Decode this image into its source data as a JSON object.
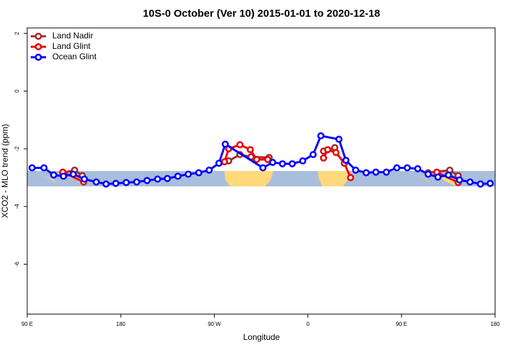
{
  "chart_data": {
    "type": "line",
    "title": "10S-0 October (Ver 10)   2015-01-01 to 2020-12-18",
    "x_label": "Longitude",
    "y_label": "XCO2 - MLO trend (ppm)",
    "xlim": [
      90,
      540
    ],
    "ylim": [
      -7.73,
      2.19
    ],
    "xticks": [
      {
        "value": 90,
        "label": "90 E"
      },
      180,
      {
        "value": 270,
        "label": "90 W"
      },
      {
        "value": 360,
        "label": "0"
      },
      {
        "value": 450,
        "label": "90 E"
      },
      {
        "value": 540,
        "label": "180"
      }
    ],
    "yticks": [
      -6,
      -4,
      -2,
      0,
      2
    ],
    "legend": "top-left",
    "series": [
      {
        "name": "Land Nadir",
        "color": "#a52a2a",
        "x": [
          124.2,
          135.6,
          143,
          null,
          283.8,
          294.6,
          305.3,
          322.7,
          null,
          375,
          385.8,
          null,
          475.6,
          496.4,
          504.5
        ],
        "values": [
          -2.83,
          -2.74,
          -2.93,
          null,
          -2.42,
          -2.2,
          -2.28,
          -2.3,
          null,
          -2.08,
          -1.96,
          null,
          -2.83,
          -2.74,
          -2.93
        ]
      },
      {
        "name": "Land Glint",
        "color": "#ee0000",
        "x": [
          124.2,
          144.3,
          null,
          279.8,
          283.8,
          294.6,
          304.6,
          310.7,
          321.4,
          null,
          375,
          379,
          387,
          395,
          401,
          null,
          484,
          504.5
        ],
        "values": [
          -2.81,
          -3.15,
          null,
          -2.45,
          -2.0,
          -1.86,
          -2.03,
          -2.37,
          -2.37,
          null,
          -2.32,
          -2.03,
          -2.13,
          -2.5,
          -3.0,
          null,
          -2.81,
          -3.17
        ]
      },
      {
        "name": "Ocean Glint",
        "color": "#0000ff",
        "x": [
          94.7,
          106.1,
          115.5,
          124.9,
          134.3,
          145,
          156.4,
          165.8,
          175.2,
          185.2,
          195.3,
          205.3,
          215.4,
          224.8,
          234.9,
          244.9,
          255,
          265,
          274.4,
          280.5,
          316.7,
          326.1,
          335.5,
          344.9,
          355,
          365,
          372.4,
          389.8,
          396.5,
          405.9,
          416,
          425.3,
          435.4,
          445.5,
          455.5,
          465.6,
          475.6,
          485,
          495.1,
          505.8,
          515.9,
          525.9,
          535.3
        ],
        "values": [
          -2.66,
          -2.66,
          -2.91,
          -2.95,
          -2.88,
          -3.05,
          -3.15,
          -3.22,
          -3.2,
          -3.17,
          -3.15,
          -3.1,
          -3.05,
          -3.03,
          -2.95,
          -2.88,
          -2.83,
          -2.74,
          -2.5,
          -1.84,
          -2.66,
          -2.47,
          -2.52,
          -2.52,
          -2.42,
          -2.2,
          -1.55,
          -1.67,
          -2.4,
          -2.74,
          -2.83,
          -2.81,
          -2.81,
          -2.66,
          -2.66,
          -2.69,
          -2.88,
          -2.98,
          -2.91,
          -3.08,
          -3.15,
          -3.22,
          -3.2
        ]
      }
    ]
  }
}
